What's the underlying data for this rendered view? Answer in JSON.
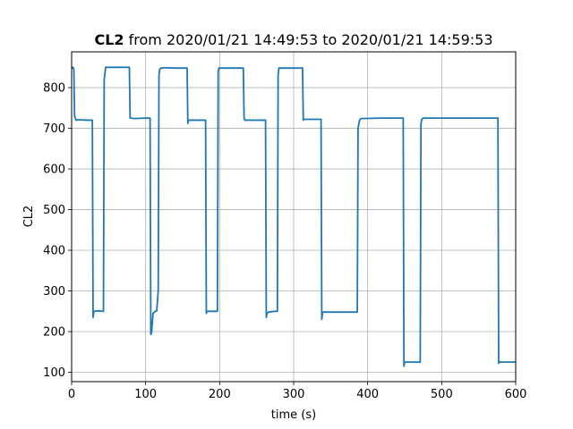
{
  "chart_data": {
    "type": "line",
    "title_bold": "CL2",
    "title_rest": " from 2020/01/21 14:49:53 to 2020/01/21 14:59:53",
    "xlabel": "time (s)",
    "ylabel": "CL2",
    "xlim": [
      0,
      600
    ],
    "ylim": [
      77,
      888
    ],
    "xticks": [
      0,
      100,
      200,
      300,
      400,
      500,
      600
    ],
    "yticks": [
      100,
      200,
      300,
      400,
      500,
      600,
      700,
      800
    ],
    "grid": true,
    "line_color": "#1f77b4",
    "series": [
      {
        "x": [
          0,
          2,
          3,
          4,
          6,
          10,
          20,
          28,
          29,
          30,
          31,
          36,
          41,
          43,
          44,
          46,
          60,
          78,
          79,
          80,
          85,
          100,
          106,
          107,
          108,
          110,
          113,
          115,
          117,
          118,
          119,
          121,
          125,
          140,
          156,
          157,
          158,
          160,
          175,
          181,
          182,
          183,
          185,
          195,
          197,
          198,
          199,
          201,
          215,
          232,
          233,
          234,
          240,
          260,
          262,
          263,
          264,
          266,
          275,
          278,
          279,
          280,
          282,
          300,
          312,
          313,
          314,
          316,
          330,
          337,
          338,
          339,
          341,
          360,
          386,
          387,
          389,
          391,
          420,
          448,
          449,
          450,
          452,
          465,
          471,
          472,
          473,
          475,
          520,
          576,
          577,
          578,
          580,
          600
        ],
        "y": [
          848,
          850,
          845,
          730,
          720,
          721,
          720,
          720,
          235,
          250,
          250,
          251,
          250,
          250,
          820,
          850,
          850,
          850,
          725,
          725,
          724,
          725,
          725,
          193,
          197,
          245,
          250,
          251,
          300,
          830,
          845,
          848,
          849,
          848,
          848,
          712,
          720,
          720,
          720,
          720,
          245,
          250,
          250,
          250,
          250,
          840,
          848,
          848,
          848,
          848,
          725,
          720,
          720,
          720,
          720,
          235,
          245,
          248,
          250,
          250,
          830,
          848,
          848,
          848,
          848,
          720,
          722,
          722,
          722,
          722,
          230,
          248,
          248,
          248,
          248,
          700,
          720,
          724,
          725,
          725,
          115,
          125,
          125,
          125,
          125,
          710,
          722,
          725,
          725,
          725,
          122,
          125,
          125,
          125
        ]
      }
    ]
  }
}
